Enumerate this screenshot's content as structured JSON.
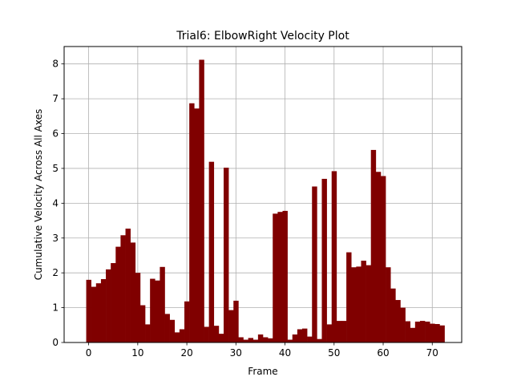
{
  "chart_data": {
    "type": "bar",
    "title": "Trial6: ElbowRight Velocity Plot",
    "xlabel": "Frame",
    "ylabel": "Cumulative Velocity Across All Axes",
    "xlim": [
      -5,
      76
    ],
    "ylim": [
      0,
      8.5
    ],
    "xticks": [
      0,
      10,
      20,
      30,
      40,
      50,
      60,
      70
    ],
    "yticks": [
      0,
      1,
      2,
      3,
      4,
      5,
      6,
      7,
      8
    ],
    "grid": true,
    "bar_color": "#800000",
    "x": [
      0,
      1,
      2,
      3,
      4,
      5,
      6,
      7,
      8,
      9,
      10,
      11,
      12,
      13,
      14,
      15,
      16,
      17,
      18,
      19,
      20,
      21,
      22,
      23,
      24,
      25,
      26,
      27,
      28,
      29,
      30,
      31,
      32,
      33,
      34,
      35,
      36,
      37,
      38,
      39,
      40,
      41,
      42,
      43,
      44,
      45,
      46,
      47,
      48,
      49,
      50,
      51,
      52,
      53,
      54,
      55,
      56,
      57,
      58,
      59,
      60,
      61,
      62,
      63,
      64,
      65,
      66,
      67,
      68,
      69,
      70,
      71,
      72
    ],
    "values": [
      1.8,
      1.6,
      1.7,
      1.82,
      2.1,
      2.28,
      2.75,
      3.08,
      3.27,
      2.87,
      2.0,
      1.07,
      0.52,
      1.83,
      1.78,
      2.17,
      0.82,
      0.65,
      0.29,
      0.38,
      1.18,
      6.87,
      6.72,
      8.12,
      0.45,
      5.19,
      0.48,
      0.25,
      5.02,
      0.93,
      1.2,
      0.15,
      0.08,
      0.13,
      0.08,
      0.23,
      0.15,
      0.12,
      3.7,
      3.75,
      3.78,
      0.08,
      0.23,
      0.38,
      0.4,
      0.17,
      4.48,
      0.1,
      4.7,
      0.52,
      4.92,
      0.62,
      0.62,
      2.59,
      2.16,
      2.18,
      2.35,
      2.22,
      5.53,
      4.9,
      4.78,
      2.16,
      1.55,
      1.22,
      1.0,
      0.61,
      0.42,
      0.6,
      0.62,
      0.6,
      0.54,
      0.53,
      0.49
    ]
  }
}
